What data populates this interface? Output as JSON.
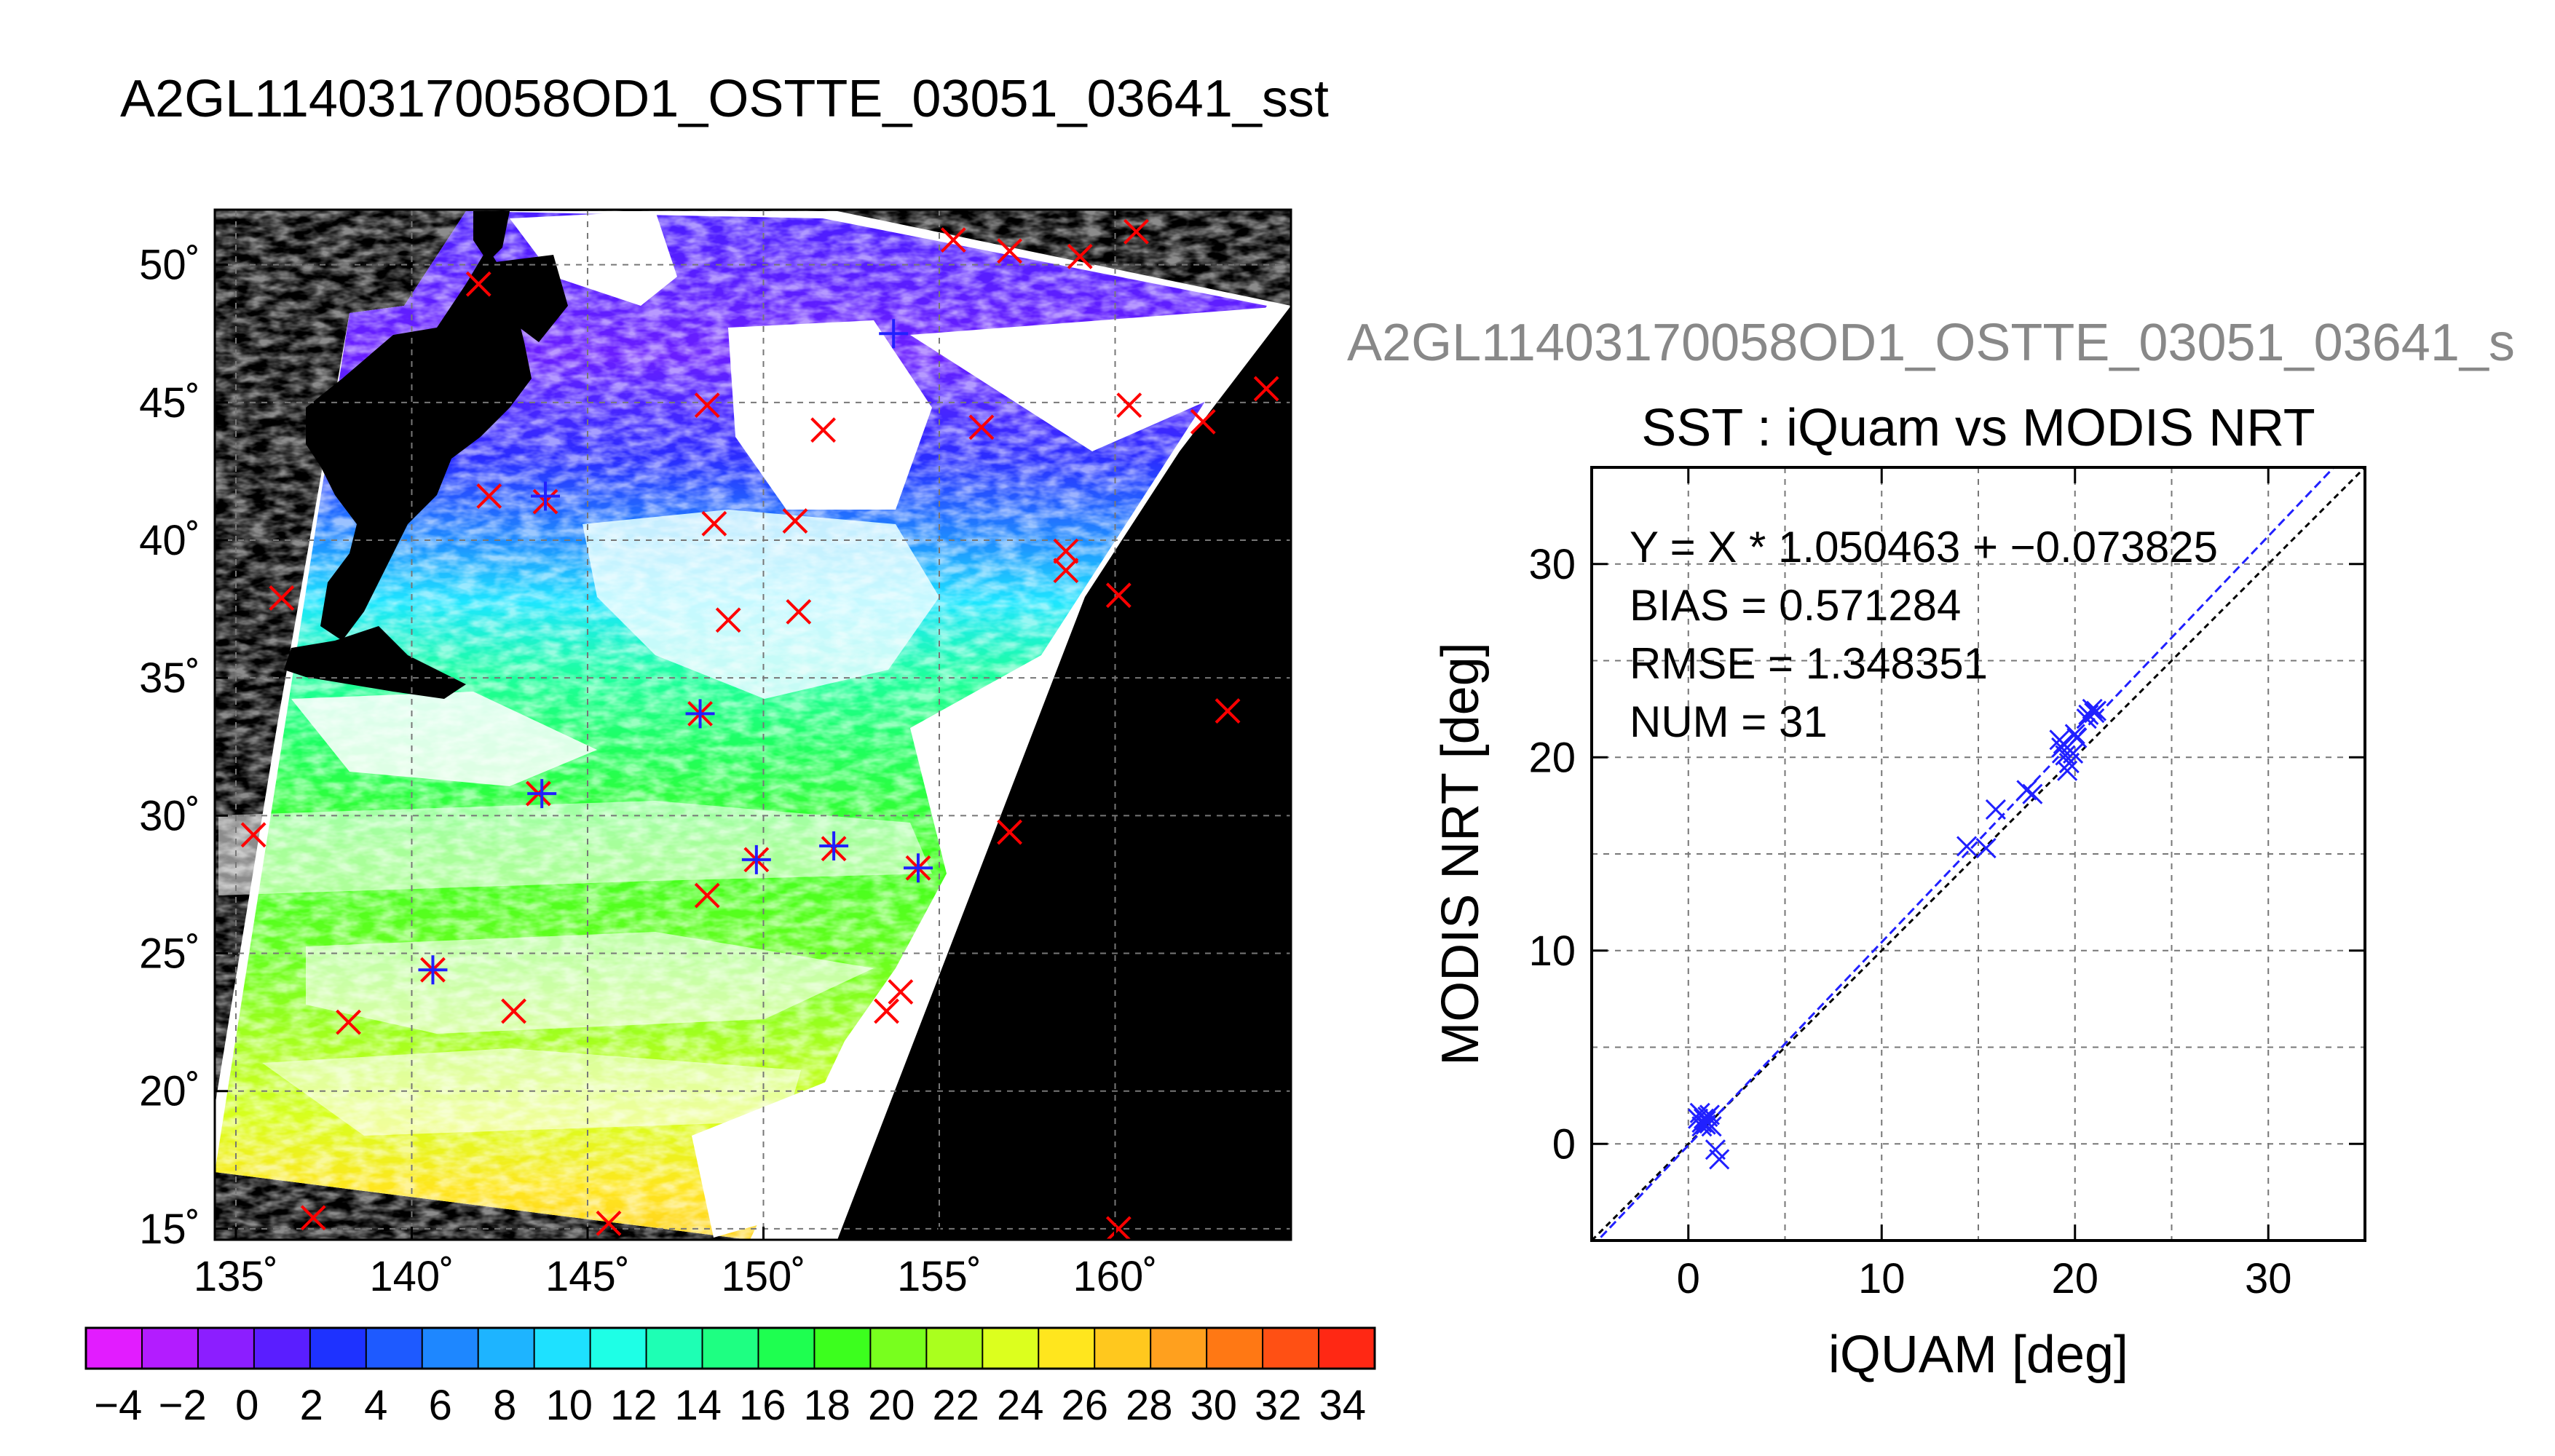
{
  "figure": {
    "title": "A2GL11403170058OD1_OSTTE_03051_03641_sst",
    "scatter_header": "A2GL11403170058OD1_OSTTE_03051_03641_s"
  },
  "chart_data": [
    {
      "type": "heatmap",
      "description_kind": "map",
      "xlabel": "",
      "ylabel": "",
      "xlim": [
        134.4,
        165
      ],
      "ylim": [
        14.6,
        52
      ],
      "x_ticks": [
        135,
        140,
        145,
        150,
        155,
        160
      ],
      "x_tick_labels": [
        "135˚",
        "140˚",
        "145˚",
        "150˚",
        "155˚",
        "160˚"
      ],
      "y_ticks": [
        15,
        20,
        25,
        30,
        35,
        40,
        45,
        50
      ],
      "y_tick_labels": [
        "15˚",
        "20˚",
        "25˚",
        "30˚",
        "35˚",
        "40˚",
        "45˚",
        "50˚"
      ],
      "grid": true,
      "markers_red_x": [
        [
          141.9,
          49.3
        ],
        [
          148.4,
          44.9
        ],
        [
          151.7,
          44.0
        ],
        [
          156.2,
          44.1
        ],
        [
          160.4,
          44.9
        ],
        [
          162.5,
          44.3
        ],
        [
          164.3,
          45.5
        ],
        [
          155.4,
          50.9
        ],
        [
          157.0,
          50.5
        ],
        [
          159.0,
          50.3
        ],
        [
          160.6,
          51.2
        ],
        [
          142.2,
          41.6
        ],
        [
          143.8,
          41.4
        ],
        [
          148.6,
          40.6
        ],
        [
          150.9,
          40.7
        ],
        [
          158.6,
          39.6
        ],
        [
          158.6,
          38.9
        ],
        [
          136.3,
          37.9
        ],
        [
          160.1,
          38.0
        ],
        [
          149.0,
          37.1
        ],
        [
          151.0,
          37.4
        ],
        [
          148.2,
          33.7
        ],
        [
          163.2,
          33.8
        ],
        [
          143.6,
          30.8
        ],
        [
          135.5,
          29.3
        ],
        [
          148.4,
          27.1
        ],
        [
          149.8,
          28.4
        ],
        [
          157.0,
          29.4
        ],
        [
          153.9,
          23.6
        ],
        [
          153.5,
          22.9
        ],
        [
          138.2,
          22.5
        ],
        [
          142.9,
          22.9
        ],
        [
          137.2,
          15.4
        ],
        [
          145.6,
          15.2
        ],
        [
          160.1,
          15.0
        ],
        [
          140.6,
          24.4
        ],
        [
          152.0,
          28.8
        ],
        [
          154.4,
          28.1
        ]
      ],
      "markers_blue_plus": [
        [
          153.7,
          47.5
        ],
        [
          143.8,
          41.6
        ],
        [
          148.2,
          33.7
        ],
        [
          143.7,
          30.8
        ],
        [
          149.8,
          28.4
        ],
        [
          152.0,
          28.9
        ],
        [
          154.4,
          28.1
        ],
        [
          140.6,
          24.4
        ]
      ]
    },
    {
      "type": "scatter",
      "title": "SST : iQuam vs MODIS NRT",
      "xlabel": "iQUAM [deg]",
      "ylabel": "MODIS NRT [deg]",
      "xlim": [
        -5,
        35
      ],
      "ylim": [
        -5,
        35
      ],
      "x_ticks": [
        0,
        10,
        20,
        30
      ],
      "y_ticks": [
        0,
        10,
        20,
        30
      ],
      "grid": true,
      "annotations": [
        "Y = X * 1.050463 + −0.073825",
        "BIAS = 0.571284",
        "RMSE = 1.348351",
        "NUM = 31"
      ],
      "fit": {
        "slope": 1.050463,
        "intercept": -0.073825
      },
      "points": [
        [
          0.6,
          1.6
        ],
        [
          0.7,
          1.1
        ],
        [
          0.8,
          1.3
        ],
        [
          0.9,
          1.0
        ],
        [
          1.0,
          1.4
        ],
        [
          0.7,
          0.9
        ],
        [
          0.9,
          1.2
        ],
        [
          1.4,
          -0.3
        ],
        [
          1.6,
          -0.8
        ],
        [
          14.4,
          15.4
        ],
        [
          15.4,
          15.3
        ],
        [
          15.9,
          17.3
        ],
        [
          17.5,
          18.3
        ],
        [
          19.2,
          20.9
        ],
        [
          19.3,
          20.5
        ],
        [
          19.4,
          20.7
        ],
        [
          19.5,
          20.1
        ],
        [
          19.6,
          19.3
        ],
        [
          19.7,
          19.7
        ],
        [
          20.0,
          21.2
        ],
        [
          20.7,
          22.2
        ],
        [
          20.9,
          22.5
        ],
        [
          21.0,
          22.3
        ],
        [
          21.1,
          22.4
        ],
        [
          17.8,
          18.1
        ],
        [
          19.9,
          20.2
        ],
        [
          20.1,
          21.0
        ],
        [
          1.1,
          1.5
        ],
        [
          0.5,
          1.3
        ],
        [
          1.2,
          0.9
        ],
        [
          20.6,
          22.0
        ]
      ]
    }
  ],
  "colorbar": {
    "min": -5,
    "max": 35,
    "tick_labels": [
      "−4",
      "−2",
      "0",
      "2",
      "4",
      "6",
      "8",
      "10",
      "12",
      "14",
      "16",
      "18",
      "20",
      "22",
      "24",
      "26",
      "28",
      "30",
      "32",
      "34"
    ],
    "colors": [
      "#e21cff",
      "#b31cff",
      "#8c1eff",
      "#5a1eff",
      "#1e32ff",
      "#1e5aff",
      "#1e87ff",
      "#1eb4ff",
      "#1ee1ff",
      "#1effe6",
      "#1effb4",
      "#1eff82",
      "#1eff50",
      "#3cff1e",
      "#78ff1e",
      "#aaff1e",
      "#dcff1e",
      "#ffe61e",
      "#ffc81e",
      "#ffa01e",
      "#ff7814",
      "#ff5014",
      "#ff2814"
    ]
  },
  "colors": {
    "land": "#000000",
    "cloud": "#ffffff",
    "marker_red": "#ff0000",
    "marker_blue": "#2020ff",
    "fit_line": "#2020ff",
    "one_to_one": "#000000"
  }
}
